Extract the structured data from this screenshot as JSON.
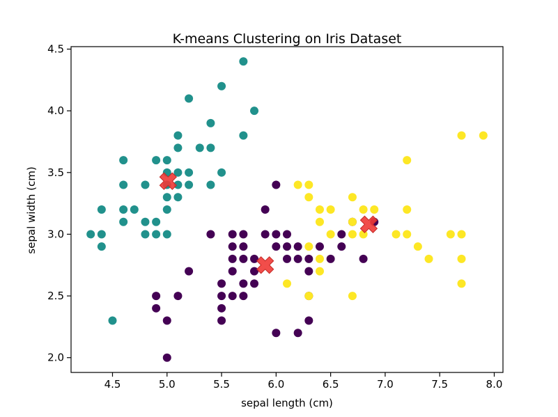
{
  "chart_data": {
    "type": "scatter",
    "title": "K-means Clustering on Iris Dataset",
    "xlabel": "sepal length (cm)",
    "ylabel": "sepal width (cm)",
    "xlim": [
      4.12,
      8.08
    ],
    "ylim": [
      1.88,
      4.52
    ],
    "xticks": [
      "4.5",
      "5.0",
      "5.5",
      "6.0",
      "6.5",
      "7.0",
      "7.5",
      "8.0"
    ],
    "yticks": [
      "2.0",
      "2.5",
      "3.0",
      "3.5",
      "4.0",
      "4.5"
    ],
    "grid": false,
    "legend": "none",
    "colors": {
      "cluster_teal": "#21918c",
      "cluster_purple": "#440154",
      "cluster_yellow": "#fde725",
      "centroid": "#f03a36"
    },
    "clusters": [
      {
        "color": "#21918c",
        "points": [
          [
            4.3,
            3.0
          ],
          [
            4.4,
            3.2
          ],
          [
            4.4,
            3.0
          ],
          [
            4.4,
            2.9
          ],
          [
            4.5,
            2.3
          ],
          [
            4.6,
            3.6
          ],
          [
            4.6,
            3.4
          ],
          [
            4.6,
            3.2
          ],
          [
            4.6,
            3.1
          ],
          [
            4.7,
            3.2
          ],
          [
            4.8,
            3.4
          ],
          [
            4.8,
            3.1
          ],
          [
            4.8,
            3.0
          ],
          [
            4.9,
            3.6
          ],
          [
            4.9,
            3.1
          ],
          [
            4.9,
            3.0
          ],
          [
            5.0,
            3.6
          ],
          [
            5.0,
            3.5
          ],
          [
            5.0,
            3.4
          ],
          [
            5.0,
            3.3
          ],
          [
            5.0,
            3.2
          ],
          [
            5.0,
            3.0
          ],
          [
            5.1,
            3.8
          ],
          [
            5.1,
            3.7
          ],
          [
            5.1,
            3.5
          ],
          [
            5.1,
            3.4
          ],
          [
            5.1,
            3.3
          ],
          [
            5.2,
            4.1
          ],
          [
            5.2,
            3.5
          ],
          [
            5.2,
            3.4
          ],
          [
            5.3,
            3.7
          ],
          [
            5.4,
            3.9
          ],
          [
            5.4,
            3.7
          ],
          [
            5.4,
            3.4
          ],
          [
            5.5,
            4.2
          ],
          [
            5.5,
            3.5
          ],
          [
            5.7,
            4.4
          ],
          [
            5.7,
            3.8
          ],
          [
            5.8,
            4.0
          ]
        ]
      },
      {
        "color": "#440154",
        "points": [
          [
            4.9,
            2.5
          ],
          [
            4.9,
            2.4
          ],
          [
            5.0,
            2.3
          ],
          [
            5.0,
            2.0
          ],
          [
            5.1,
            2.5
          ],
          [
            5.2,
            2.7
          ],
          [
            5.4,
            3.0
          ],
          [
            5.5,
            2.6
          ],
          [
            5.5,
            2.5
          ],
          [
            5.5,
            2.4
          ],
          [
            5.5,
            2.3
          ],
          [
            5.6,
            3.0
          ],
          [
            5.6,
            2.9
          ],
          [
            5.6,
            2.8
          ],
          [
            5.6,
            2.7
          ],
          [
            5.6,
            2.5
          ],
          [
            5.7,
            3.0
          ],
          [
            5.7,
            2.9
          ],
          [
            5.7,
            2.8
          ],
          [
            5.7,
            2.6
          ],
          [
            5.7,
            2.5
          ],
          [
            5.8,
            2.8
          ],
          [
            5.8,
            2.7
          ],
          [
            5.8,
            2.6
          ],
          [
            5.9,
            3.2
          ],
          [
            5.9,
            3.0
          ],
          [
            6.0,
            3.4
          ],
          [
            6.0,
            3.0
          ],
          [
            6.0,
            2.9
          ],
          [
            6.0,
            2.2
          ],
          [
            6.1,
            3.0
          ],
          [
            6.1,
            2.9
          ],
          [
            6.1,
            2.8
          ],
          [
            6.2,
            2.9
          ],
          [
            6.2,
            2.8
          ],
          [
            6.2,
            2.2
          ],
          [
            6.3,
            2.8
          ],
          [
            6.3,
            2.7
          ],
          [
            6.3,
            2.5
          ],
          [
            6.3,
            2.3
          ],
          [
            6.4,
            2.9
          ],
          [
            6.5,
            2.8
          ],
          [
            6.6,
            3.0
          ],
          [
            6.6,
            2.9
          ],
          [
            6.7,
            3.1
          ],
          [
            6.8,
            2.8
          ],
          [
            6.9,
            3.1
          ]
        ]
      },
      {
        "color": "#fde725",
        "points": [
          [
            6.1,
            2.6
          ],
          [
            6.2,
            3.4
          ],
          [
            6.3,
            3.4
          ],
          [
            6.3,
            3.3
          ],
          [
            6.3,
            2.9
          ],
          [
            6.3,
            2.5
          ],
          [
            6.4,
            3.2
          ],
          [
            6.4,
            3.1
          ],
          [
            6.4,
            2.8
          ],
          [
            6.4,
            2.7
          ],
          [
            6.5,
            3.2
          ],
          [
            6.5,
            3.0
          ],
          [
            6.7,
            3.3
          ],
          [
            6.7,
            3.1
          ],
          [
            6.7,
            3.0
          ],
          [
            6.7,
            2.5
          ],
          [
            6.8,
            3.2
          ],
          [
            6.8,
            3.0
          ],
          [
            6.9,
            3.2
          ],
          [
            7.1,
            3.0
          ],
          [
            7.2,
            3.6
          ],
          [
            7.2,
            3.2
          ],
          [
            7.2,
            3.0
          ],
          [
            7.3,
            2.9
          ],
          [
            7.4,
            2.8
          ],
          [
            7.6,
            3.0
          ],
          [
            7.7,
            3.8
          ],
          [
            7.7,
            3.0
          ],
          [
            7.7,
            2.8
          ],
          [
            7.7,
            2.6
          ],
          [
            7.9,
            3.8
          ]
        ]
      }
    ],
    "centroids": [
      [
        5.01,
        3.43
      ],
      [
        5.9,
        2.75
      ],
      [
        6.85,
        3.08
      ]
    ]
  }
}
